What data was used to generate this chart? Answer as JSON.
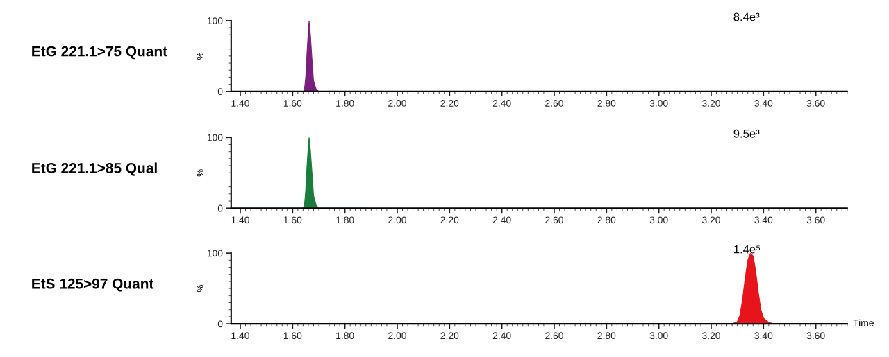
{
  "chart_data": [
    {
      "type": "area",
      "title": "EtG 221.1>75 Quant",
      "ylabel": "%",
      "annotations": [
        "8.4e³"
      ],
      "tick_labels": "xy",
      "xlim": [
        1.365,
        3.72
      ],
      "ylim": [
        0,
        100
      ],
      "yticks": [
        0,
        100
      ],
      "xticks": [
        {
          "value": 1.4,
          "label": "1.40"
        },
        {
          "value": 1.6,
          "label": "1.60"
        },
        {
          "value": 1.8,
          "label": "1.80"
        },
        {
          "value": 2.0,
          "label": "2.00"
        },
        {
          "value": 2.2,
          "label": "2.20"
        },
        {
          "value": 2.4,
          "label": "2.40"
        },
        {
          "value": 2.6,
          "label": "2.60"
        },
        {
          "value": 2.8,
          "label": "2.80"
        },
        {
          "value": 3.0,
          "label": "3.00"
        },
        {
          "value": 3.2,
          "label": "3.20"
        },
        {
          "value": 3.4,
          "label": "3.40"
        },
        {
          "value": 3.6,
          "label": "3.60"
        }
      ],
      "series": [
        {
          "color": "#7b1f7f",
          "x": [
            1.37,
            1.64,
            1.645,
            1.65,
            1.655,
            1.66,
            1.663,
            1.668,
            1.675,
            1.68,
            1.69,
            1.7,
            1.89
          ],
          "values": [
            0,
            0,
            2,
            20,
            55,
            85,
            100,
            80,
            40,
            15,
            3,
            0,
            0
          ]
        }
      ]
    },
    {
      "type": "area",
      "title": "EtG 221.1>85 Qual",
      "ylabel": "%",
      "annotations": [
        "9.5e³"
      ],
      "xlim": [
        1.365,
        3.72
      ],
      "ylim": [
        0,
        100
      ],
      "yticks": [
        0,
        100
      ],
      "xticks": [
        {
          "value": 1.4,
          "label": "1.40"
        },
        {
          "value": 1.6,
          "label": "1.60"
        },
        {
          "value": 1.8,
          "label": "1.80"
        },
        {
          "value": 2.0,
          "label": "2.00"
        },
        {
          "value": 2.2,
          "label": "2.20"
        },
        {
          "value": 2.4,
          "label": "2.40"
        },
        {
          "value": 2.6,
          "label": "2.60"
        },
        {
          "value": 2.8,
          "label": "2.80"
        },
        {
          "value": 3.0,
          "label": "3.00"
        },
        {
          "value": 3.2,
          "label": "3.20"
        },
        {
          "value": 3.4,
          "label": "3.40"
        },
        {
          "value": 3.6,
          "label": "3.60"
        }
      ],
      "series": [
        {
          "color": "#1a7d3c",
          "x": [
            1.37,
            1.64,
            1.645,
            1.65,
            1.655,
            1.66,
            1.663,
            1.668,
            1.675,
            1.68,
            1.69,
            1.7,
            1.89
          ],
          "values": [
            0,
            0,
            3,
            25,
            60,
            88,
            100,
            82,
            45,
            18,
            4,
            0,
            0
          ]
        }
      ]
    },
    {
      "type": "area",
      "title": "EtS 125>97 Quant",
      "ylabel": "%",
      "xlabel": "Time",
      "annotations": [
        "1.4e⁵"
      ],
      "xlim": [
        1.365,
        3.72
      ],
      "ylim": [
        0,
        100
      ],
      "yticks": [
        0,
        100
      ],
      "xticks": [
        {
          "value": 1.4,
          "label": "1.40"
        },
        {
          "value": 1.6,
          "label": "1.60"
        },
        {
          "value": 1.8,
          "label": "1.80"
        },
        {
          "value": 2.0,
          "label": "2.00"
        },
        {
          "value": 2.2,
          "label": "2.20"
        },
        {
          "value": 2.4,
          "label": "2.40"
        },
        {
          "value": 2.6,
          "label": "2.60"
        },
        {
          "value": 2.8,
          "label": "2.80"
        },
        {
          "value": 3.0,
          "label": "3.00"
        },
        {
          "value": 3.2,
          "label": "3.20"
        },
        {
          "value": 3.4,
          "label": "3.40"
        },
        {
          "value": 3.6,
          "label": "3.60"
        }
      ],
      "series": [
        {
          "color": "#e8141c",
          "x": [
            3.0,
            3.28,
            3.3,
            3.31,
            3.32,
            3.33,
            3.34,
            3.35,
            3.36,
            3.37,
            3.38,
            3.39,
            3.4,
            3.42,
            3.44,
            3.72
          ],
          "values": [
            0,
            0,
            3,
            12,
            35,
            65,
            90,
            100,
            96,
            75,
            45,
            20,
            8,
            2,
            0,
            0
          ]
        }
      ]
    }
  ]
}
